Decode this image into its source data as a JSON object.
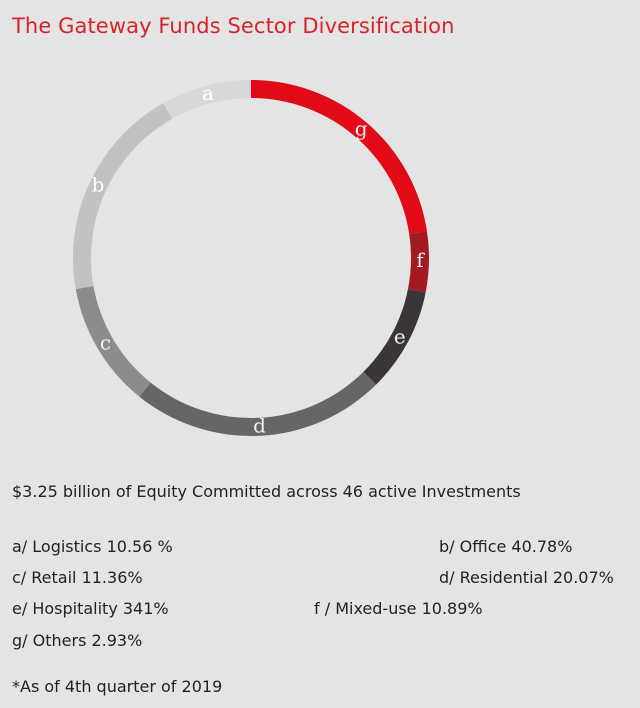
{
  "title": "The Gateway Funds Sector Diversification",
  "summary": "$3.25 billion of Equity Committed across 46 active Investments",
  "legend": {
    "a": "a/ Logistics 10.56 %",
    "b": "b/ Office 40.78%",
    "c": "c/ Retail 11.36%",
    "d": "d/ Residential 20.07%",
    "e": "e/ Hospitality 341%",
    "f": "f / Mixed-use 10.89%",
    "g": "g/ Others 2.93%"
  },
  "footnote": "*As of 4th quarter of 2019",
  "chart_data": {
    "type": "pie",
    "style": "donut",
    "segments": [
      {
        "label": "g",
        "name": "Others",
        "value": 2.93,
        "display_share": 0.226,
        "color": "#e20a17"
      },
      {
        "label": "f",
        "name": "Mixed-use",
        "value": 10.89,
        "display_share": 0.055,
        "color": "#a31a22"
      },
      {
        "label": "e",
        "name": "Hospitality",
        "value": 341,
        "display_share": 0.095,
        "color": "#3a3536"
      },
      {
        "label": "d",
        "name": "Residential",
        "value": 20.07,
        "display_share": 0.232,
        "color": "#666666"
      },
      {
        "label": "c",
        "name": "Retail",
        "value": 11.36,
        "display_share": 0.114,
        "color": "#8c8c8c"
      },
      {
        "label": "b",
        "name": "Office",
        "value": 40.78,
        "display_share": 0.196,
        "color": "#c2c2c2"
      },
      {
        "label": "a",
        "name": "Logistics",
        "value": 10.56,
        "display_share": 0.082,
        "color": "#d8d8d8"
      }
    ]
  }
}
